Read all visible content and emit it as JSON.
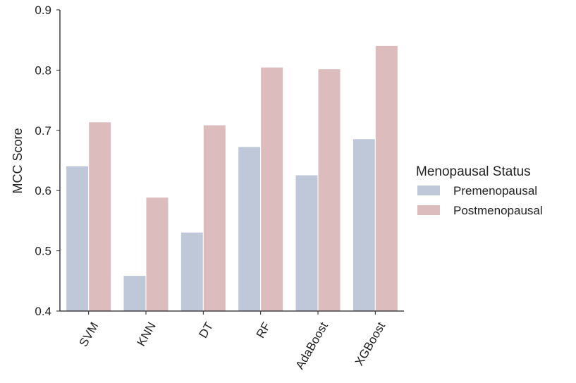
{
  "chart_data": {
    "type": "bar",
    "categories": [
      "SVM",
      "KNN",
      "DT",
      "RF",
      "AdaBoost",
      "XGBoost"
    ],
    "series": [
      {
        "name": "Premenopausal",
        "color": "#bfc8d8",
        "values": [
          0.641,
          0.459,
          0.531,
          0.673,
          0.626,
          0.686
        ]
      },
      {
        "name": "Postmenopausal",
        "color": "#dcbcbc",
        "values": [
          0.714,
          0.589,
          0.709,
          0.805,
          0.802,
          0.841
        ]
      }
    ],
    "xlabel": "",
    "ylabel": "MCC Score",
    "ylim": [
      0.4,
      0.9
    ],
    "yticks": [
      "0.4",
      "0.5",
      "0.6",
      "0.7",
      "0.8",
      "0.9"
    ],
    "legend": {
      "title": "Menopausal Status",
      "position": "right"
    },
    "grid": false
  }
}
